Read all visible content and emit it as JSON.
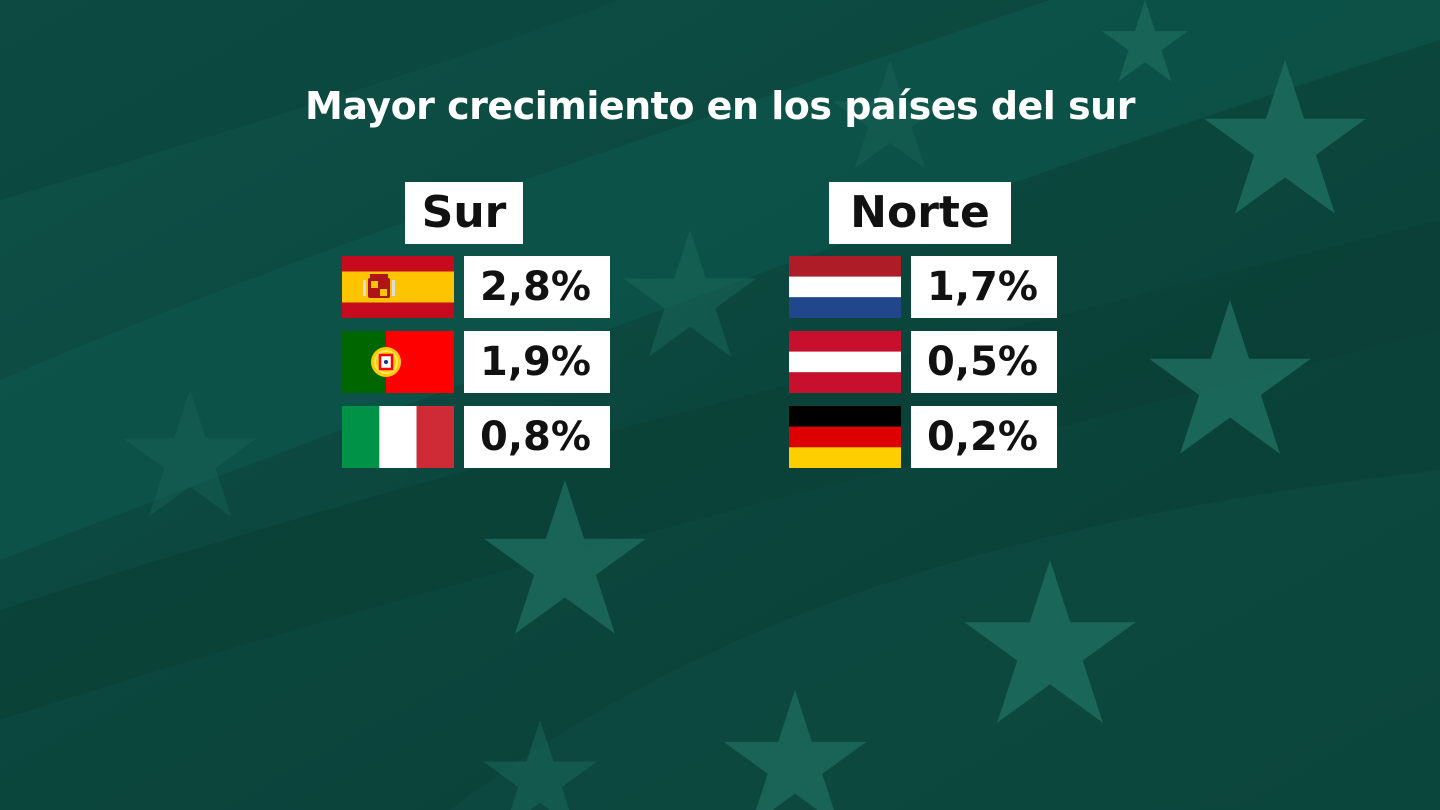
{
  "title": "Mayor crecimiento en los países del sur",
  "colors": {
    "background": "#0c4a40",
    "star": "#1c6a5c",
    "box": "#ffffff",
    "text": "#111111"
  },
  "south": {
    "label": "Sur",
    "rows": [
      {
        "flag": "spain-flag",
        "value": "2,8%"
      },
      {
        "flag": "portugal-flag",
        "value": "1,9%"
      },
      {
        "flag": "italy-flag",
        "value": "0,8%"
      }
    ]
  },
  "north": {
    "label": "Norte",
    "rows": [
      {
        "flag": "netherlands-flag",
        "value": "1,7%"
      },
      {
        "flag": "austria-flag",
        "value": "0,5%"
      },
      {
        "flag": "germany-flag",
        "value": "0,2%"
      }
    ]
  }
}
